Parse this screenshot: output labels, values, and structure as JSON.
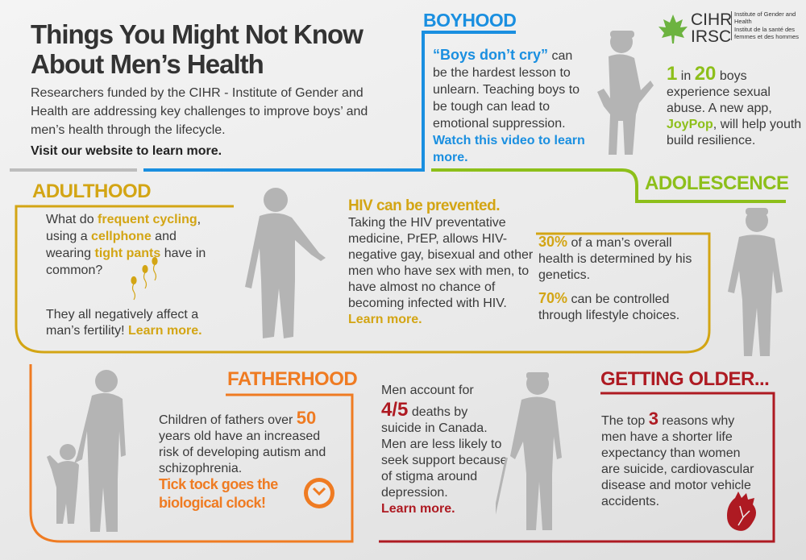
{
  "colors": {
    "boyhood": "#1a8fe0",
    "adolescence": "#8dbf1a",
    "adulthood": "#d3a514",
    "fatherhood": "#ef7b22",
    "getting_older": "#ae1a22",
    "silhouette": "#b4b4b4"
  },
  "header": {
    "title_line1": "Things You Might Not Know",
    "title_line2": "About Men’s Health",
    "intro": "Researchers funded by the CIHR - Institute of Gender and Health are addressing key challenges to improve boys’ and men’s health through the lifecycle.",
    "cta": "Visit our website to learn more."
  },
  "logo": {
    "abbr_en": "CIHR",
    "abbr_fr": "IRSC",
    "name_en": "Institute of Gender and Health",
    "name_fr": "Institut de la santé des femmes et des hommes"
  },
  "boyhood": {
    "heading": "BOYHOOD",
    "highlight": "“Boys don’t cry”",
    "text": " can be the hardest lesson to unlearn. Teaching boys to be tough can lead to emotional suppression. ",
    "link": "Watch this video to learn more.",
    "stat_1": "1",
    "stat_in": " in ",
    "stat_20": "20",
    "stat_text": " boys experience sexual abuse. A new app, ",
    "app": "JoyPop",
    "stat_end": ", will help youth build resilience."
  },
  "adolescence": {
    "heading": "ADOLESCENCE",
    "p1_stat": "30%",
    "p1_text": " of a man’s overall health is determined by his genetics.",
    "p2_stat": "70%",
    "p2_text": " can be controlled through lifestyle choices."
  },
  "adulthood": {
    "heading": "ADULTHOOD",
    "q_a": "What do ",
    "q_b": "frequent cycling",
    "q_c": ", using a ",
    "q_d": "cellphone",
    "q_e": " and wearing ",
    "q_f": "tight pants",
    "q_g": " have in common?",
    "answer": "They all negatively affect a man’s fertility! ",
    "link": "Learn more.",
    "hiv_heading": "HIV can be prevented.",
    "hiv_text": "Taking the HIV preventative medicine, PrEP, allows HIV-negative gay, bisexual and other men who have sex with men, to have almost no chance of becoming infected with HIV. ",
    "hiv_link": "Learn more."
  },
  "fatherhood": {
    "heading": "FATHERHOOD",
    "text_a": "Children of fathers over ",
    "stat": "50",
    "text_b": " years old have an increased risk of developing autism and schizophrenia.",
    "tagline": "Tick tock goes the biological clock!"
  },
  "suicide": {
    "intro": "Men account for",
    "stat": "4/5",
    "text": " deaths by suicide in Canada. Men are less likely to seek support because of stigma around depression.",
    "link": "Learn more."
  },
  "getting_older": {
    "heading": "GETTING OLDER...",
    "text_a": "The top ",
    "stat": "3",
    "text_b": " reasons why men have a shorter life expectancy than women are suicide, cardiovascular disease and motor vehicle accidents."
  },
  "icons": [
    "maple-leaf-logo",
    "sperm-icon",
    "clock-icon",
    "heart-icon",
    "silhouette-boy",
    "silhouette-teen",
    "silhouette-man",
    "silhouette-father-child",
    "silhouette-old-man"
  ]
}
